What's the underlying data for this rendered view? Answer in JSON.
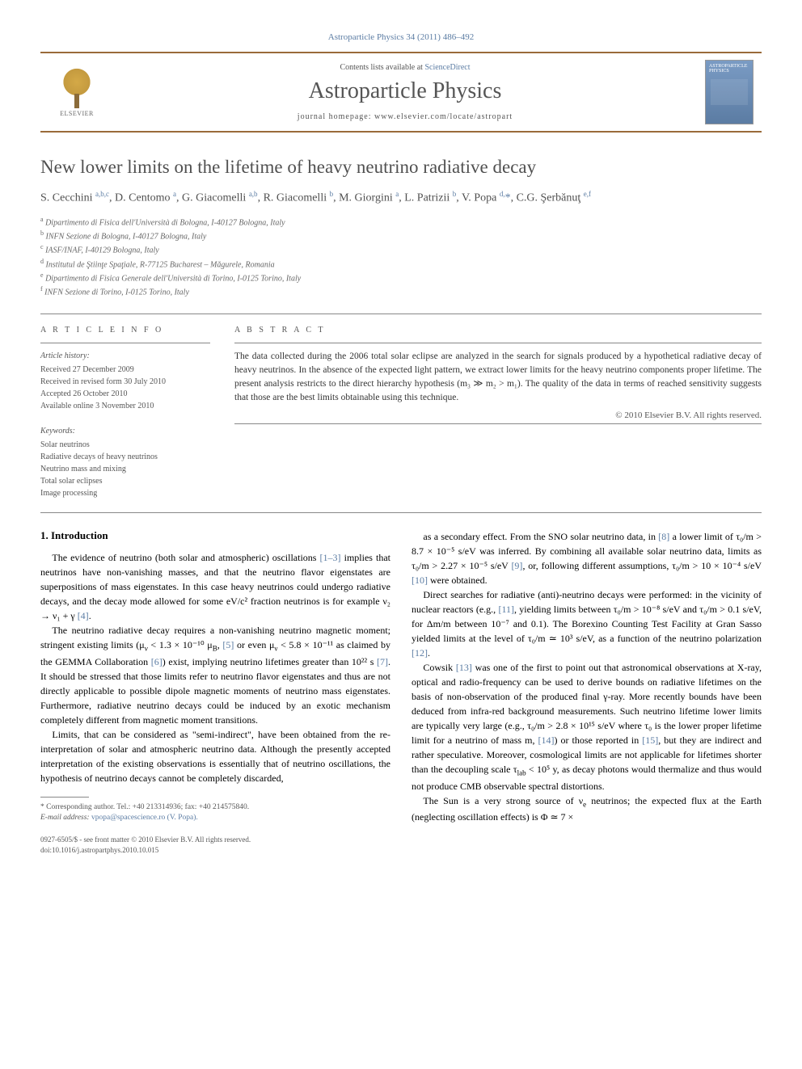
{
  "citation": "Astroparticle Physics 34 (2011) 486–492",
  "banner": {
    "contents_prefix": "Contents lists available at ",
    "contents_link": "ScienceDirect",
    "journal": "Astroparticle Physics",
    "homepage_prefix": "journal homepage: ",
    "homepage_url": "www.elsevier.com/locate/astropart",
    "publisher": "ELSEVIER",
    "cover_label": "ASTROPARTICLE PHYSICS"
  },
  "title": "New lower limits on the lifetime of heavy neutrino radiative decay",
  "authors_html": "S. Cecchini <sup>a,b,c</sup>, D. Centomo <sup>a</sup>, G. Giacomelli <sup>a,b</sup>, R. Giacomelli <sup>b</sup>, M. Giorgini <sup>a</sup>, L. Patrizii <sup>b</sup>, V. Popa <sup>d,</sup><span class='corr'>*</span>, C.G. Şerbănuţ <sup>e,f</sup>",
  "affiliations": [
    {
      "sup": "a",
      "text": "Dipartimento di Fisica dell'Università di Bologna, I-40127 Bologna, Italy"
    },
    {
      "sup": "b",
      "text": "INFN Sezione di Bologna, I-40127 Bologna, Italy"
    },
    {
      "sup": "c",
      "text": "IASF/INAF, I-40129 Bologna, Italy"
    },
    {
      "sup": "d",
      "text": "Institutul de Ştiinţe Spaţiale, R-77125 Bucharest – Măgurele, Romania"
    },
    {
      "sup": "e",
      "text": "Dipartimento di Fisica Generale dell'Università di Torino, I-0125 Torino, Italy"
    },
    {
      "sup": "f",
      "text": "INFN Sezione di Torino, I-0125 Torino, Italy"
    }
  ],
  "article_info": {
    "heading": "A R T I C L E   I N F O",
    "history_label": "Article history:",
    "history": [
      "Received 27 December 2009",
      "Received in revised form 30 July 2010",
      "Accepted 26 October 2010",
      "Available online 3 November 2010"
    ],
    "keywords_label": "Keywords:",
    "keywords": [
      "Solar neutrinos",
      "Radiative decays of heavy neutrinos",
      "Neutrino mass and mixing",
      "Total solar eclipses",
      "Image processing"
    ]
  },
  "abstract": {
    "heading": "A B S T R A C T",
    "text": "The data collected during the 2006 total solar eclipse are analyzed in the search for signals produced by a hypothetical radiative decay of heavy neutrinos. In the absence of the expected light pattern, we extract lower limits for the heavy neutrino components proper lifetime. The present analysis restricts to the direct hierarchy hypothesis (m₃ ≫ m₂ > m₁). The quality of the data in terms of reached sensitivity suggests that those are the best limits obtainable using this technique.",
    "copyright": "© 2010 Elsevier B.V. All rights reserved."
  },
  "section1": {
    "heading": "1. Introduction",
    "paras_left": [
      "The evidence of neutrino (both solar and atmospheric) oscillations <span class='ref'>[1–3]</span> implies that neutrinos have non-vanishing masses, and that the neutrino flavor eigenstates are superpositions of mass eigenstates. In this case heavy neutrinos could undergo radiative decays, and the decay mode allowed for some eV/c² fraction neutrinos is for example ν₂ → ν₁ + γ <span class='ref'>[4]</span>.",
      "The neutrino radiative decay requires a non-vanishing neutrino magnetic moment; stringent existing limits (μ<sub>ν</sub> < 1.3 × 10⁻¹⁰ μ<sub>B</sub>, <span class='ref'>[5]</span> or even μ<sub>ν</sub> < 5.8 × 10⁻¹¹ as claimed by the GEMMA Collaboration <span class='ref'>[6]</span>) exist, implying neutrino lifetimes greater than 10²² s <span class='ref'>[7]</span>. It should be stressed that those limits refer to neutrino flavor eigenstates and thus are not directly applicable to possible dipole magnetic moments of neutrino mass eigenstates. Furthermore, radiative neutrino decays could be induced by an exotic mechanism completely different from magnetic moment transitions.",
      "Limits, that can be considered as \"semi-indirect\", have been obtained from the re-interpretation of solar and atmospheric neutrino data. Although the presently accepted interpretation of the existing observations is essentially that of neutrino oscillations, the hypothesis of neutrino decays cannot be completely discarded,"
    ],
    "paras_right": [
      "as a secondary effect. From the SNO solar neutrino data, in <span class='ref'>[8]</span> a lower limit of τ₀/m > 8.7 × 10⁻⁵ s/eV was inferred. By combining all available solar neutrino data, limits as τ₀/m > 2.27 × 10⁻⁵ s/eV <span class='ref'>[9]</span>, or, following different assumptions, τ₀/m > 10 × 10⁻⁴ s/eV <span class='ref'>[10]</span> were obtained.",
      "Direct searches for radiative (anti)-neutrino decays were performed: in the vicinity of nuclear reactors (e.g., <span class='ref'>[11]</span>, yielding limits between τ₀/m > 10⁻⁸ s/eV and τ₀/m > 0.1 s/eV, for Δm/m between 10⁻⁷ and 0.1). The Borexino Counting Test Facility at Gran Sasso yielded limits at the level of τ₀/m ≃ 10³ s/eV, as a function of the neutrino polarization <span class='ref'>[12]</span>.",
      "Cowsik <span class='ref'>[13]</span> was one of the first to point out that astronomical observations at X-ray, optical and radio-frequency can be used to derive bounds on radiative lifetimes on the basis of non-observation of the produced final γ-ray. More recently bounds have been deduced from infra-red background measurements. Such neutrino lifetime lower limits are typically very large (e.g., τ₀/m > 2.8 × 10¹⁵ s/eV where τ₀ is the lower proper lifetime limit for a neutrino of mass m, <span class='ref'>[14]</span>) or those reported in <span class='ref'>[15]</span>, but they are indirect and rather speculative. Moreover, cosmological limits are not applicable for lifetimes shorter than the decoupling scale τ<sub>lab</sub> < 10⁵ y, as decay photons would thermalize and thus would not produce CMB observable spectral distortions.",
      "The Sun is a very strong source of ν<sub>e</sub> neutrinos; the expected flux at the Earth (neglecting oscillation effects) is Φ ≃ 7 ×"
    ]
  },
  "footnote": {
    "marker": "*",
    "line1": "Corresponding author. Tel.: +40 213314936; fax: +40 214575840.",
    "line2_label": "E-mail address:",
    "line2_value": "vpopa@spacescience.ro (V. Popa)."
  },
  "footer": {
    "line1": "0927-6505/$ - see front matter © 2010 Elsevier B.V. All rights reserved.",
    "line2": "doi:10.1016/j.astropartphys.2010.10.015"
  },
  "colors": {
    "link": "#5b7ca3",
    "rule": "#9a6b3a",
    "text": "#333333",
    "muted": "#555555"
  }
}
